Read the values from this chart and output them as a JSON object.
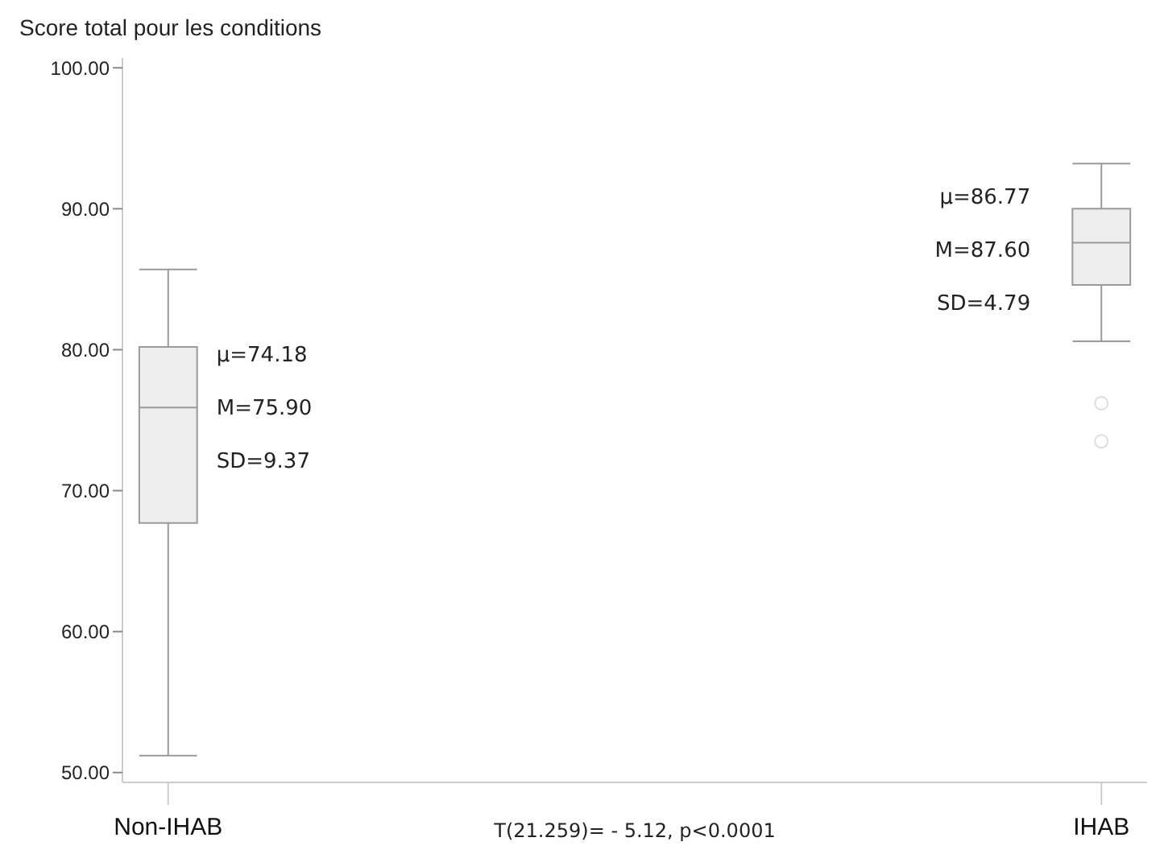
{
  "chart_data": {
    "type": "box",
    "title": "Score total pour les conditions",
    "categories": [
      "Non-IHAB",
      "IHAB"
    ],
    "color": "#eeeeee",
    "boxes": [
      {
        "low": 51.2,
        "q1": 67.7,
        "median": 75.9,
        "q3": 80.2,
        "high": 85.7
      },
      {
        "low": 80.6,
        "q1": 84.6,
        "median": 87.6,
        "q3": 90.0,
        "high": 93.2,
        "outliers": [
          76.2,
          73.5
        ]
      }
    ],
    "ylim": [
      49.3,
      100.7
    ],
    "yticks": [
      {
        "value": 50,
        "label": "50.00"
      },
      {
        "value": 60,
        "label": "60.00"
      },
      {
        "value": 70,
        "label": "70.00"
      },
      {
        "value": 80,
        "label": "80.00"
      },
      {
        "value": 90,
        "label": "90.00"
      },
      {
        "value": 100,
        "label": "100.00"
      }
    ],
    "grid": false,
    "annotations": [
      "μ=74.18",
      "M=75.90",
      "SD=9.37",
      "μ=86.77",
      "M=87.60",
      "SD=4.79",
      "T(21.259)= - 5.12, p<0.0001"
    ]
  }
}
